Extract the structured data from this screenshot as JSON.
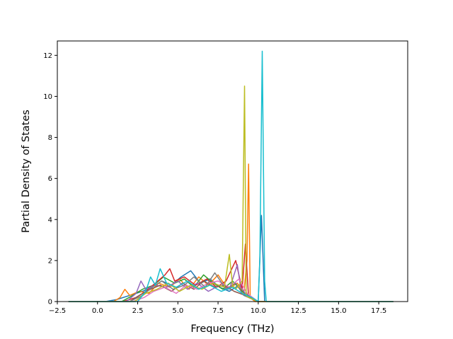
{
  "chart_data": {
    "type": "line",
    "title": "",
    "xlabel": "Frequency (THz)",
    "ylabel": "Partial Density of States",
    "xlim": [
      -2.5,
      19.3
    ],
    "ylim": [
      0,
      12.7
    ],
    "xticks": [
      -2.5,
      0.0,
      2.5,
      5.0,
      7.5,
      10.0,
      12.5,
      15.0,
      17.5
    ],
    "xtick_labels": [
      "−2.5",
      "0.0",
      "2.5",
      "5.0",
      "7.5",
      "10.0",
      "12.5",
      "15.0",
      "17.5"
    ],
    "yticks": [
      0,
      2,
      4,
      6,
      8,
      10,
      12
    ],
    "ytick_labels": [
      "0",
      "2",
      "4",
      "6",
      "8",
      "10",
      "12"
    ],
    "grid": false,
    "legend": "none",
    "colors": [
      "#1f77b4",
      "#ff7f0e",
      "#2ca02c",
      "#d62728",
      "#9467bd",
      "#8c564b",
      "#e377c2",
      "#7f7f7f",
      "#bcbd22",
      "#17becf"
    ],
    "series": [
      {
        "color": "#1f77b4",
        "x": [
          -1.8,
          0.5,
          1.2,
          2.0,
          2.8,
          3.4,
          4.0,
          4.6,
          5.2,
          5.8,
          6.4,
          7.0,
          7.6,
          8.2,
          8.8,
          9.2,
          9.6,
          10.0,
          10.2,
          10.4,
          11.0,
          18.4
        ],
        "y": [
          0,
          0,
          0.1,
          0.3,
          0.5,
          0.7,
          1.0,
          0.8,
          1.2,
          1.5,
          0.9,
          1.1,
          0.7,
          0.5,
          0.8,
          0.3,
          0.2,
          0,
          4.2,
          0,
          0,
          0
        ]
      },
      {
        "color": "#ff7f0e",
        "x": [
          -1.8,
          1.0,
          1.4,
          1.7,
          2.0,
          2.6,
          3.2,
          3.8,
          4.5,
          5.1,
          5.7,
          6.3,
          6.9,
          7.5,
          8.1,
          8.7,
          9.1,
          9.3,
          9.4,
          9.5,
          9.8,
          18.4
        ],
        "y": [
          0,
          0,
          0.2,
          0.6,
          0.3,
          0.5,
          0.4,
          0.9,
          0.7,
          1.1,
          0.6,
          1.2,
          0.8,
          1.3,
          0.6,
          0.9,
          0.4,
          2.0,
          6.7,
          0.2,
          0,
          0
        ]
      },
      {
        "color": "#2ca02c",
        "x": [
          -1.8,
          1.5,
          2.2,
          2.8,
          3.5,
          4.1,
          4.8,
          5.4,
          6.0,
          6.6,
          7.2,
          7.8,
          8.4,
          9.0,
          9.4,
          10.0,
          18.4
        ],
        "y": [
          0,
          0,
          0.3,
          0.6,
          0.8,
          1.2,
          0.9,
          1.1,
          0.7,
          1.3,
          0.9,
          0.6,
          1.0,
          0.5,
          0.3,
          0,
          0
        ]
      },
      {
        "color": "#d62728",
        "x": [
          -1.8,
          1.6,
          2.4,
          3.0,
          3.6,
          4.2,
          4.5,
          4.8,
          5.4,
          6.1,
          6.8,
          7.4,
          8.0,
          8.6,
          9.0,
          9.2,
          9.4,
          10.0,
          18.4
        ],
        "y": [
          0,
          0,
          0.2,
          0.5,
          0.9,
          1.3,
          1.6,
          1.0,
          1.2,
          0.8,
          1.1,
          0.7,
          1.0,
          2.0,
          0.6,
          2.8,
          0.2,
          0,
          0
        ]
      },
      {
        "color": "#9467bd",
        "x": [
          -1.8,
          1.8,
          2.4,
          2.7,
          3.0,
          3.6,
          4.3,
          5.0,
          5.6,
          6.2,
          6.9,
          7.6,
          8.2,
          8.7,
          8.9,
          9.3,
          10.0,
          18.4
        ],
        "y": [
          0,
          0,
          0.4,
          1.0,
          0.6,
          0.8,
          0.7,
          1.0,
          0.6,
          0.9,
          0.5,
          0.8,
          0.6,
          1.8,
          0.7,
          0.3,
          0,
          0
        ]
      },
      {
        "color": "#8c564b",
        "x": [
          -1.8,
          2.0,
          2.6,
          3.3,
          3.9,
          4.6,
          5.3,
          6.0,
          6.6,
          7.3,
          7.9,
          8.5,
          9.2,
          10.0,
          18.4
        ],
        "y": [
          0,
          0,
          0.3,
          0.6,
          0.8,
          0.5,
          0.9,
          0.6,
          1.0,
          0.7,
          0.8,
          0.5,
          0.3,
          0,
          0
        ]
      },
      {
        "color": "#e377c2",
        "x": [
          -1.8,
          2.2,
          2.9,
          3.5,
          4.2,
          4.9,
          5.5,
          6.2,
          6.9,
          7.5,
          8.2,
          8.8,
          9.3,
          10.0,
          18.4
        ],
        "y": [
          0,
          0,
          0.2,
          0.5,
          0.7,
          0.4,
          0.8,
          0.6,
          0.9,
          1.0,
          0.7,
          1.1,
          0.4,
          0,
          0
        ]
      },
      {
        "color": "#7f7f7f",
        "x": [
          -1.8,
          2.0,
          2.8,
          3.4,
          4.0,
          4.7,
          5.4,
          6.0,
          6.7,
          7.3,
          8.0,
          8.6,
          9.1,
          10.0,
          18.4
        ],
        "y": [
          0,
          0,
          0.3,
          0.7,
          1.0,
          0.6,
          0.8,
          1.2,
          0.7,
          1.4,
          0.6,
          0.9,
          0.3,
          0,
          0
        ]
      },
      {
        "color": "#bcbd22",
        "x": [
          -1.8,
          2.3,
          3.0,
          3.7,
          4.4,
          5.1,
          5.8,
          6.5,
          7.2,
          7.9,
          8.2,
          8.4,
          8.6,
          9.0,
          9.15,
          9.25,
          9.4,
          10.0,
          18.4
        ],
        "y": [
          0,
          0,
          0.4,
          0.6,
          0.9,
          0.5,
          0.8,
          0.6,
          0.9,
          0.7,
          2.3,
          0.8,
          0.6,
          1.0,
          10.5,
          0.3,
          0.2,
          0,
          0
        ]
      },
      {
        "color": "#17becf",
        "x": [
          -1.8,
          2.5,
          3.0,
          3.3,
          3.6,
          3.9,
          4.3,
          4.9,
          5.6,
          6.3,
          7.0,
          7.7,
          8.4,
          9.0,
          9.6,
          10.0,
          10.1,
          10.25,
          10.4,
          10.5,
          11.0,
          18.4
        ],
        "y": [
          0,
          0,
          0.5,
          1.2,
          0.8,
          1.6,
          0.9,
          0.7,
          1.0,
          0.6,
          0.8,
          0.5,
          0.7,
          0.4,
          0.2,
          0,
          2.0,
          12.2,
          1.0,
          0,
          0,
          0
        ]
      }
    ]
  }
}
